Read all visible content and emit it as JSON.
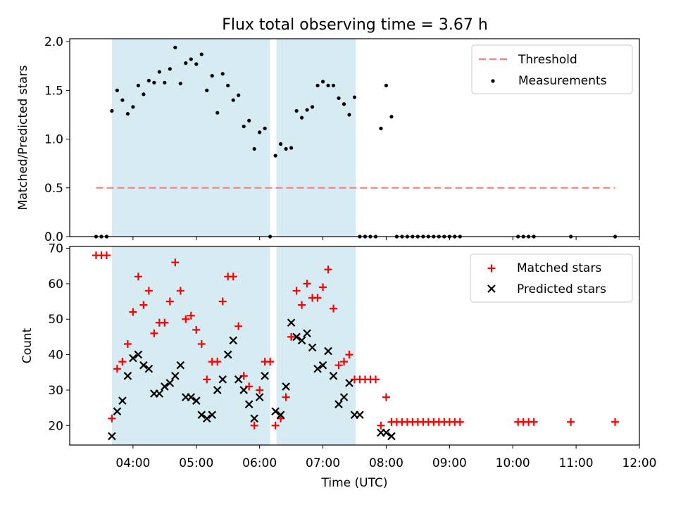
{
  "title": "Flux total observing time = 3.67 h",
  "colors": {
    "shade": "#add8e6",
    "threshold": "#ff7f7f",
    "matched": "#ff0000",
    "predicted": "#000000",
    "measurement": "#000000"
  },
  "chart_data": [
    {
      "type": "scatter",
      "ylabel": "Matched/Predicted stars",
      "xlim": [
        "03:00",
        "12:00"
      ],
      "ylim": [
        0,
        2.03
      ],
      "yticks": [
        0.0,
        0.5,
        1.0,
        1.5,
        2.0
      ],
      "ytick_labels": [
        "0.0",
        "0.5",
        "1.0",
        "1.5",
        "2.0"
      ],
      "legend_position": "top-right",
      "shaded_intervals": [
        [
          "03:40",
          "06:10"
        ],
        [
          "06:16",
          "07:31"
        ]
      ],
      "threshold": {
        "name": "Threshold",
        "y": 0.5,
        "x": [
          "03:25",
          "11:37"
        ]
      },
      "series": [
        {
          "name": "Measurements",
          "x": [
            "03:25",
            "03:30",
            "03:35",
            "03:40",
            "03:45",
            "03:50",
            "03:55",
            "04:00",
            "04:05",
            "04:10",
            "04:15",
            "04:20",
            "04:25",
            "04:30",
            "04:35",
            "04:40",
            "04:45",
            "04:50",
            "04:55",
            "05:00",
            "05:05",
            "05:10",
            "05:15",
            "05:20",
            "05:25",
            "05:30",
            "05:35",
            "05:40",
            "05:45",
            "05:50",
            "05:55",
            "06:00",
            "06:05",
            "06:10",
            "06:15",
            "06:20",
            "06:25",
            "06:30",
            "06:35",
            "06:40",
            "06:45",
            "06:50",
            "06:55",
            "07:00",
            "07:05",
            "07:10",
            "07:15",
            "07:20",
            "07:25",
            "07:30",
            "07:35",
            "07:40",
            "07:45",
            "07:50",
            "07:55",
            "08:00",
            "08:05",
            "08:10",
            "08:15",
            "08:20",
            "08:25",
            "08:30",
            "08:35",
            "08:40",
            "08:45",
            "08:50",
            "08:55",
            "09:00",
            "09:05",
            "09:10",
            "10:05",
            "10:10",
            "10:15",
            "10:20",
            "10:55",
            "11:37"
          ],
          "y": [
            0,
            0,
            0,
            1.29,
            1.5,
            1.4,
            1.26,
            1.33,
            1.55,
            1.46,
            1.6,
            1.58,
            1.69,
            1.58,
            1.72,
            1.94,
            1.57,
            1.78,
            1.82,
            1.77,
            1.87,
            1.5,
            1.65,
            1.27,
            1.67,
            1.55,
            1.4,
            1.45,
            1.13,
            1.19,
            0.9,
            1.07,
            1.11,
            0,
            0.83,
            0.95,
            0.9,
            0.91,
            1.29,
            1.22,
            1.3,
            1.33,
            1.55,
            1.59,
            1.55,
            1.55,
            1.42,
            1.36,
            1.25,
            1.43,
            0,
            0,
            0,
            0,
            1.11,
            1.55,
            1.23,
            0,
            0,
            0,
            0,
            0,
            0,
            0,
            0,
            0,
            0,
            0,
            0,
            0,
            0,
            0,
            0,
            0,
            0,
            0
          ]
        }
      ]
    },
    {
      "type": "scatter",
      "xlabel": "Time (UTC)",
      "ylabel": "Count",
      "xlim": [
        "03:00",
        "12:00"
      ],
      "ylim": [
        14.5,
        70.5
      ],
      "xtick_labels": [
        "04:00",
        "05:00",
        "06:00",
        "07:00",
        "08:00",
        "09:00",
        "10:00",
        "11:00",
        "12:00"
      ],
      "yticks": [
        20,
        30,
        40,
        50,
        60,
        70
      ],
      "legend_position": "top-right",
      "shaded_intervals": [
        [
          "03:40",
          "06:10"
        ],
        [
          "06:16",
          "07:31"
        ]
      ],
      "series": [
        {
          "name": "Matched stars",
          "x": [
            "03:25",
            "03:30",
            "03:35",
            "03:40",
            "03:45",
            "03:50",
            "03:55",
            "04:00",
            "04:05",
            "04:10",
            "04:15",
            "04:20",
            "04:25",
            "04:30",
            "04:35",
            "04:40",
            "04:45",
            "04:50",
            "04:55",
            "05:00",
            "05:05",
            "05:10",
            "05:15",
            "05:20",
            "05:25",
            "05:30",
            "05:35",
            "05:40",
            "05:45",
            "05:50",
            "05:55",
            "06:00",
            "06:05",
            "06:10",
            "06:15",
            "06:20",
            "06:25",
            "06:30",
            "06:35",
            "06:40",
            "06:45",
            "06:50",
            "06:55",
            "07:00",
            "07:05",
            "07:10",
            "07:15",
            "07:20",
            "07:25",
            "07:30",
            "07:35",
            "07:40",
            "07:45",
            "07:50",
            "07:55",
            "08:00",
            "08:05",
            "08:10",
            "08:15",
            "08:20",
            "08:25",
            "08:30",
            "08:35",
            "08:40",
            "08:45",
            "08:50",
            "08:55",
            "09:00",
            "09:05",
            "09:10",
            "10:05",
            "10:10",
            "10:15",
            "10:20",
            "10:55",
            "11:37"
          ],
          "y": [
            68,
            68,
            68,
            22,
            36,
            38,
            43,
            52,
            62,
            54,
            58,
            46,
            49,
            49,
            55,
            66,
            58,
            50,
            51,
            47,
            43,
            33,
            38,
            38,
            55,
            62,
            62,
            48,
            34,
            31,
            20,
            30,
            38,
            38,
            20,
            22,
            28,
            45,
            58,
            54,
            60,
            56,
            56,
            59,
            64,
            53,
            37,
            38,
            40,
            33,
            33,
            33,
            33,
            33,
            20,
            28,
            21,
            21,
            21,
            21,
            21,
            21,
            21,
            21,
            21,
            21,
            21,
            21,
            21,
            21,
            21,
            21,
            21,
            21,
            21,
            21
          ]
        },
        {
          "name": "Predicted stars",
          "x": [
            "03:40",
            "03:45",
            "03:50",
            "03:55",
            "04:00",
            "04:05",
            "04:10",
            "04:15",
            "04:20",
            "04:25",
            "04:30",
            "04:35",
            "04:40",
            "04:45",
            "04:50",
            "04:55",
            "05:00",
            "05:05",
            "05:10",
            "05:15",
            "05:20",
            "05:25",
            "05:30",
            "05:35",
            "05:40",
            "05:45",
            "05:50",
            "05:55",
            "06:00",
            "06:05",
            "06:15",
            "06:20",
            "06:25",
            "06:30",
            "06:35",
            "06:40",
            "06:45",
            "06:50",
            "06:55",
            "07:00",
            "07:05",
            "07:10",
            "07:15",
            "07:20",
            "07:25",
            "07:30",
            "07:35",
            "07:55",
            "08:00",
            "08:05"
          ],
          "y": [
            17,
            24,
            27,
            34,
            39,
            40,
            37,
            36,
            29,
            29,
            31,
            32,
            34,
            37,
            28,
            28,
            27,
            23,
            22,
            23,
            30,
            33,
            40,
            44,
            33,
            30,
            26,
            22,
            28,
            34,
            24,
            23,
            31,
            49,
            45,
            44,
            46,
            42,
            36,
            37,
            41,
            34,
            26,
            28,
            32,
            23,
            23,
            18,
            18,
            17
          ]
        }
      ]
    }
  ]
}
